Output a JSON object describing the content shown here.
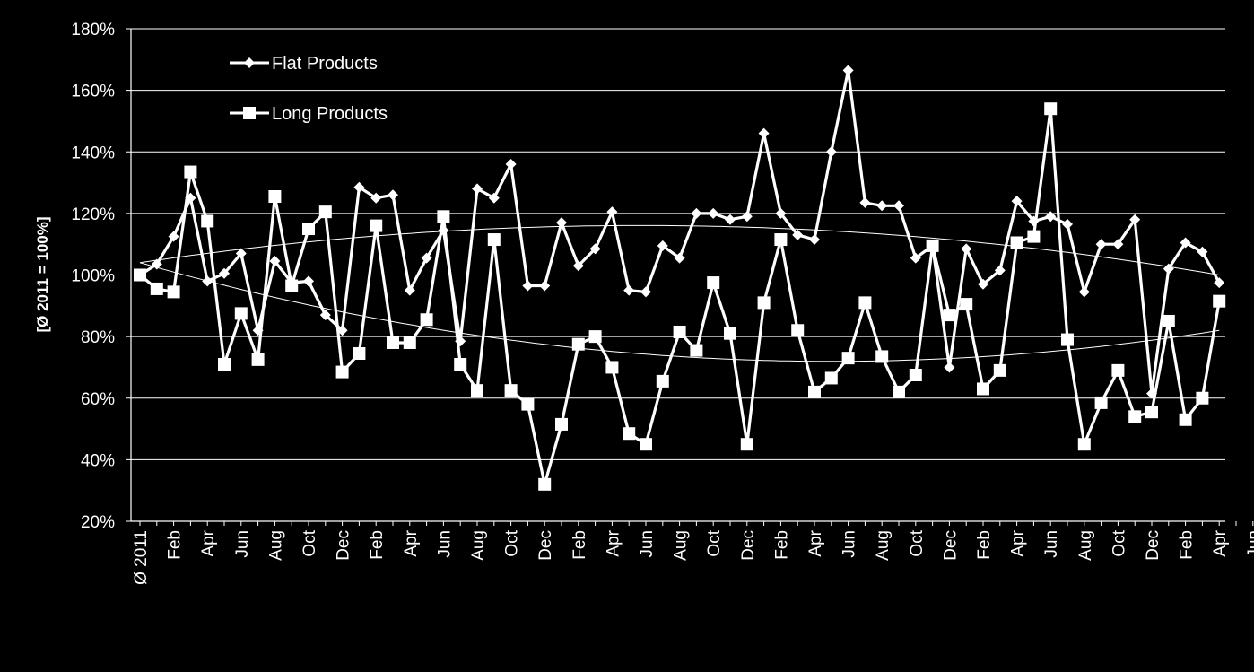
{
  "chart_data": {
    "type": "line",
    "ylabel": "[Ø 2011 = 100%]",
    "ylim": [
      0.2,
      1.8
    ],
    "yticks": [
      "20%",
      "40%",
      "60%",
      "80%",
      "100%",
      "120%",
      "140%",
      "160%",
      "180%"
    ],
    "grid": "horizontal",
    "legend_position": "top-left",
    "colors": {
      "background": "#000000",
      "series": "#ffffff",
      "grid": "#ffffff"
    },
    "x_labels": [
      "Ø 2011",
      "",
      "Feb",
      "",
      "Apr",
      "",
      "Jun",
      "",
      "Aug",
      "",
      "Oct",
      "",
      "Dec",
      "",
      "Feb",
      "",
      "Apr",
      "",
      "Jun",
      "",
      "Aug",
      "",
      "Oct",
      "",
      "Dec",
      "",
      "Feb",
      "",
      "Apr",
      "",
      "Jun",
      "",
      "Aug",
      "",
      "Oct",
      "",
      "Dec",
      "",
      "Feb",
      "",
      "Apr",
      "",
      "Jun",
      "",
      "Aug",
      "",
      "Oct",
      "",
      "Dec",
      "",
      "Feb",
      "",
      "Apr",
      "",
      "Jun",
      "",
      "Aug",
      "",
      "Oct",
      "",
      "Dec",
      "",
      "Feb",
      "",
      "Apr",
      "",
      "Jun",
      "",
      "Aug",
      "",
      "Oct",
      "",
      "Dec",
      "",
      "Feb",
      "",
      "Apr"
    ],
    "series": [
      {
        "name": "Flat Products",
        "marker": "diamond",
        "values": [
          1.0,
          1.035,
          1.125,
          1.25,
          0.98,
          1.005,
          1.07,
          0.82,
          1.045,
          0.975,
          0.98,
          0.87,
          0.82,
          1.285,
          1.25,
          1.26,
          0.95,
          1.055,
          1.145,
          0.785,
          1.28,
          1.25,
          1.36,
          0.965,
          0.965,
          1.17,
          1.03,
          1.085,
          1.205,
          0.95,
          0.945,
          1.095,
          1.055,
          1.2,
          1.2,
          1.18,
          1.19,
          1.46,
          1.2,
          1.13,
          1.115,
          1.4,
          1.665,
          1.235,
          1.225,
          1.225,
          1.055,
          1.095,
          0.7,
          1.085,
          0.97,
          1.015,
          1.24,
          1.175,
          1.19,
          1.165,
          0.945,
          1.1,
          1.1,
          1.18,
          0.615,
          1.02,
          1.105,
          1.075,
          0.975
        ]
      },
      {
        "name": "Long Products",
        "marker": "square",
        "values": [
          1.0,
          0.955,
          0.945,
          1.335,
          1.175,
          0.71,
          0.875,
          0.725,
          1.255,
          0.965,
          1.15,
          1.205,
          0.685,
          0.745,
          1.16,
          0.78,
          0.78,
          0.855,
          1.19,
          0.71,
          0.625,
          1.115,
          0.625,
          0.58,
          0.32,
          0.515,
          0.775,
          0.8,
          0.7,
          0.485,
          0.45,
          0.655,
          0.815,
          0.755,
          0.975,
          0.81,
          0.45,
          0.91,
          1.115,
          0.82,
          0.62,
          0.665,
          0.73,
          0.91,
          0.735,
          0.62,
          0.675,
          1.095,
          0.87,
          0.905,
          0.63,
          0.69,
          1.105,
          1.125,
          1.54,
          0.79,
          0.45,
          0.585,
          0.69,
          0.54,
          0.555,
          0.85,
          0.53,
          0.6,
          0.915
        ]
      }
    ],
    "trendlines": [
      {
        "series": "Flat Products",
        "start": 1.04,
        "mid": 1.16,
        "end": 1.0
      },
      {
        "series": "Long Products",
        "start": 1.04,
        "mid": 0.735,
        "end": 0.82
      }
    ]
  }
}
